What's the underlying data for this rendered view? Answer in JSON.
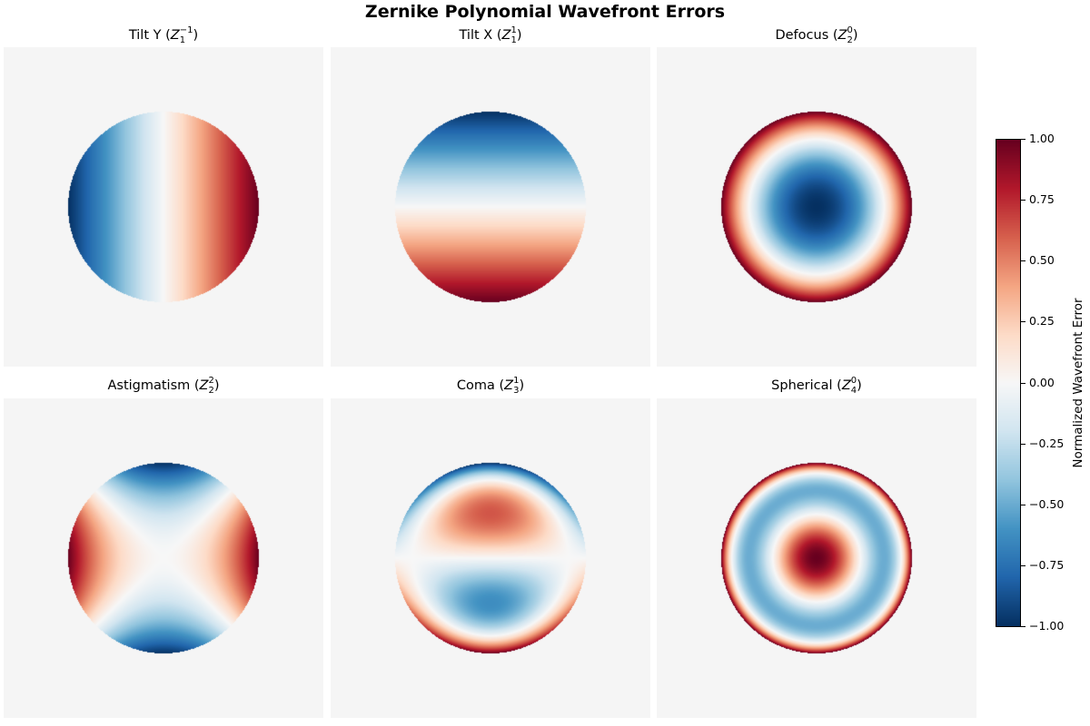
{
  "chart_data": {
    "type": "heatmap",
    "title": "Zernike Polynomial Wavefront Errors",
    "colormap": "RdBu_r",
    "colormap_stops": [
      "#053061",
      "#2166ac",
      "#4393c3",
      "#92c5de",
      "#d1e5f0",
      "#f7f7f7",
      "#fddbc7",
      "#f4a582",
      "#d6604d",
      "#b2182b",
      "#67001f"
    ],
    "background": "#f5f5f5",
    "panels": [
      {
        "name": "Tilt Y",
        "math": {
          "n": "1",
          "m": "−1"
        },
        "mode": "tilt_y"
      },
      {
        "name": "Tilt X",
        "math": {
          "n": "1",
          "m": "1"
        },
        "mode": "tilt_x"
      },
      {
        "name": "Defocus",
        "math": {
          "n": "2",
          "m": "0"
        },
        "mode": "defocus"
      },
      {
        "name": "Astigmatism",
        "math": {
          "n": "2",
          "m": "2"
        },
        "mode": "astigmatism"
      },
      {
        "name": "Coma",
        "math": {
          "n": "3",
          "m": "1"
        },
        "mode": "coma"
      },
      {
        "name": "Spherical",
        "math": {
          "n": "4",
          "m": "0"
        },
        "mode": "spherical"
      }
    ],
    "colorbar": {
      "label": "Normalized Wavefront Error",
      "range": [
        -1,
        1
      ],
      "ticks": [
        "1.00",
        "0.75",
        "0.50",
        "0.25",
        "0.00",
        "−0.25",
        "−0.50",
        "−0.75",
        "−1.00"
      ]
    }
  }
}
